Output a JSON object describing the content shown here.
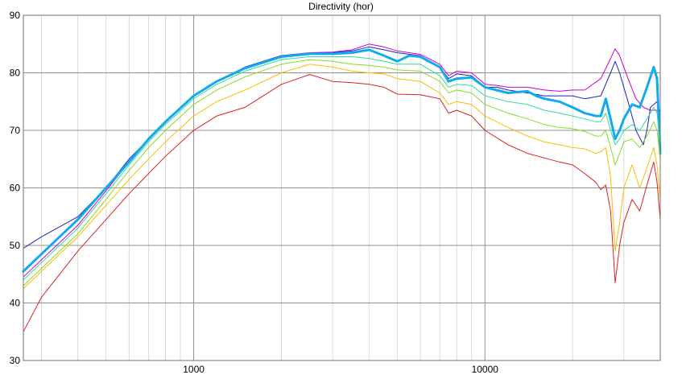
{
  "chart_data": {
    "type": "line",
    "title": "Directivity (hor)",
    "xlabel": "",
    "ylabel": "",
    "x_scale": "log",
    "xlim": [
      260,
      40000
    ],
    "ylim": [
      30,
      90
    ],
    "yticks": [
      30,
      40,
      50,
      60,
      70,
      80,
      90
    ],
    "xticks_labeled": [
      1000,
      10000
    ],
    "xticks_labels": [
      "1000",
      "10000"
    ],
    "grid": true,
    "legend": "none",
    "series": [
      {
        "color": "#cc00cc",
        "width": 1,
        "points": [
          [
            260,
            44.5
          ],
          [
            300,
            47.5
          ],
          [
            400,
            53.5
          ],
          [
            500,
            59.5
          ],
          [
            600,
            64.5
          ],
          [
            700,
            68.5
          ],
          [
            800,
            71.5
          ],
          [
            1000,
            76
          ],
          [
            1200,
            78.5
          ],
          [
            1500,
            81
          ],
          [
            2000,
            83
          ],
          [
            2500,
            83.5
          ],
          [
            3000,
            83.6
          ],
          [
            3500,
            84
          ],
          [
            4000,
            85
          ],
          [
            4500,
            84.5
          ],
          [
            5000,
            83.8
          ],
          [
            6000,
            83.2
          ],
          [
            7000,
            81.5
          ],
          [
            7500,
            79.5
          ],
          [
            8000,
            80.3
          ],
          [
            9000,
            80
          ],
          [
            10000,
            78
          ],
          [
            11000,
            77.8
          ],
          [
            12000,
            77.5
          ],
          [
            14000,
            77.5
          ],
          [
            16000,
            77
          ],
          [
            18000,
            76.8
          ],
          [
            20000,
            77
          ],
          [
            22000,
            77
          ],
          [
            25000,
            79
          ],
          [
            27000,
            82.5
          ],
          [
            28000,
            84.2
          ],
          [
            29000,
            83
          ],
          [
            31000,
            79
          ],
          [
            33000,
            75.5
          ],
          [
            35000,
            74
          ],
          [
            37000,
            73.5
          ],
          [
            39000,
            73.5
          ],
          [
            40000,
            72.5
          ]
        ]
      },
      {
        "color": "#2222bb",
        "width": 1,
        "points": [
          [
            260,
            49.5
          ],
          [
            300,
            51.5
          ],
          [
            400,
            55
          ],
          [
            500,
            60
          ],
          [
            600,
            65
          ],
          [
            700,
            68.5
          ],
          [
            800,
            71.5
          ],
          [
            1000,
            76
          ],
          [
            1200,
            78.5
          ],
          [
            1500,
            81
          ],
          [
            2000,
            83
          ],
          [
            2500,
            83.4
          ],
          [
            3000,
            83.5
          ],
          [
            3500,
            83.8
          ],
          [
            4000,
            84.5
          ],
          [
            4500,
            84
          ],
          [
            5000,
            83.5
          ],
          [
            6000,
            83
          ],
          [
            7000,
            81
          ],
          [
            7500,
            79
          ],
          [
            8000,
            79.8
          ],
          [
            9000,
            79.5
          ],
          [
            10000,
            77.5
          ],
          [
            11000,
            77.5
          ],
          [
            12000,
            77
          ],
          [
            14000,
            76.5
          ],
          [
            16000,
            76
          ],
          [
            18000,
            76
          ],
          [
            20000,
            76
          ],
          [
            22000,
            75.5
          ],
          [
            25000,
            76
          ],
          [
            27000,
            80
          ],
          [
            28000,
            82
          ],
          [
            29000,
            80
          ],
          [
            31000,
            75
          ],
          [
            33000,
            70
          ],
          [
            35000,
            67.5
          ],
          [
            36000,
            70
          ],
          [
            37000,
            74
          ],
          [
            39000,
            75
          ],
          [
            40000,
            73
          ]
        ]
      },
      {
        "color": "#11aaee",
        "width": 3,
        "points": [
          [
            260,
            45.5
          ],
          [
            300,
            48.5
          ],
          [
            400,
            54.5
          ],
          [
            500,
            60
          ],
          [
            600,
            64.5
          ],
          [
            700,
            68.5
          ],
          [
            800,
            71.5
          ],
          [
            1000,
            76
          ],
          [
            1200,
            78.5
          ],
          [
            1500,
            80.8
          ],
          [
            2000,
            82.8
          ],
          [
            2500,
            83.3
          ],
          [
            3000,
            83.3
          ],
          [
            3500,
            83.5
          ],
          [
            4000,
            84
          ],
          [
            4500,
            83
          ],
          [
            5000,
            82
          ],
          [
            5500,
            83
          ],
          [
            6000,
            82.8
          ],
          [
            7000,
            81
          ],
          [
            7500,
            78.5
          ],
          [
            8000,
            79
          ],
          [
            9000,
            79.2
          ],
          [
            10000,
            77.5
          ],
          [
            12000,
            76.5
          ],
          [
            14000,
            76.8
          ],
          [
            15000,
            76
          ],
          [
            16000,
            75.5
          ],
          [
            18000,
            75
          ],
          [
            20000,
            74
          ],
          [
            22000,
            73
          ],
          [
            24000,
            72.5
          ],
          [
            25000,
            72.5
          ],
          [
            26000,
            75.5
          ],
          [
            27000,
            72
          ],
          [
            28000,
            68.5
          ],
          [
            29000,
            70
          ],
          [
            30000,
            72
          ],
          [
            32000,
            74.5
          ],
          [
            34000,
            74
          ],
          [
            36000,
            77.5
          ],
          [
            38000,
            81
          ],
          [
            39000,
            79
          ],
          [
            40000,
            66
          ]
        ]
      },
      {
        "color": "#33dd99",
        "width": 1,
        "points": [
          [
            260,
            44
          ],
          [
            300,
            47
          ],
          [
            400,
            53
          ],
          [
            500,
            59
          ],
          [
            600,
            64
          ],
          [
            700,
            68
          ],
          [
            800,
            71
          ],
          [
            1000,
            75.5
          ],
          [
            1200,
            78
          ],
          [
            1500,
            80.3
          ],
          [
            2000,
            82.3
          ],
          [
            2500,
            82.8
          ],
          [
            3000,
            82.8
          ],
          [
            3500,
            82.8
          ],
          [
            4000,
            82.5
          ],
          [
            4500,
            82
          ],
          [
            5000,
            81.5
          ],
          [
            6000,
            81.5
          ],
          [
            7000,
            79.5
          ],
          [
            7500,
            77.5
          ],
          [
            8000,
            78
          ],
          [
            9000,
            77.8
          ],
          [
            10000,
            76
          ],
          [
            12000,
            75
          ],
          [
            14000,
            74.5
          ],
          [
            16000,
            73.5
          ],
          [
            18000,
            73
          ],
          [
            20000,
            72.5
          ],
          [
            22000,
            72
          ],
          [
            24000,
            71.5
          ],
          [
            25000,
            71.5
          ],
          [
            26000,
            73
          ],
          [
            27000,
            70
          ],
          [
            28000,
            67.5
          ],
          [
            29000,
            68.5
          ],
          [
            30000,
            70
          ],
          [
            32000,
            71
          ],
          [
            34000,
            70
          ],
          [
            36000,
            72
          ],
          [
            38000,
            74
          ],
          [
            39000,
            73
          ],
          [
            40000,
            67
          ]
        ]
      },
      {
        "color": "#88dd22",
        "width": 1,
        "points": [
          [
            260,
            43
          ],
          [
            300,
            46
          ],
          [
            400,
            52
          ],
          [
            500,
            58
          ],
          [
            600,
            63
          ],
          [
            700,
            67
          ],
          [
            800,
            70
          ],
          [
            1000,
            74.5
          ],
          [
            1200,
            77
          ],
          [
            1500,
            79.3
          ],
          [
            2000,
            81.5
          ],
          [
            2500,
            82.3
          ],
          [
            3000,
            82
          ],
          [
            3500,
            81.5
          ],
          [
            4000,
            81.3
          ],
          [
            4500,
            81
          ],
          [
            5000,
            80.5
          ],
          [
            6000,
            80.3
          ],
          [
            7000,
            78.5
          ],
          [
            7500,
            76.5
          ],
          [
            8000,
            77
          ],
          [
            9000,
            76.5
          ],
          [
            10000,
            74.5
          ],
          [
            12000,
            73
          ],
          [
            14000,
            72
          ],
          [
            16000,
            71
          ],
          [
            18000,
            70.5
          ],
          [
            20000,
            70.3
          ],
          [
            22000,
            69.8
          ],
          [
            24000,
            69
          ],
          [
            25000,
            69
          ],
          [
            26000,
            70
          ],
          [
            27000,
            67
          ],
          [
            28000,
            64
          ],
          [
            29000,
            66
          ],
          [
            30000,
            68
          ],
          [
            32000,
            68.5
          ],
          [
            34000,
            67
          ],
          [
            36000,
            69
          ],
          [
            38000,
            71.5
          ],
          [
            39000,
            70
          ],
          [
            40000,
            65
          ]
        ]
      },
      {
        "color": "#ffbb00",
        "width": 1,
        "points": [
          [
            260,
            42.5
          ],
          [
            300,
            45.5
          ],
          [
            400,
            51.5
          ],
          [
            500,
            57
          ],
          [
            600,
            61.5
          ],
          [
            700,
            65
          ],
          [
            800,
            68
          ],
          [
            1000,
            72.5
          ],
          [
            1200,
            75
          ],
          [
            1500,
            77
          ],
          [
            2000,
            80
          ],
          [
            2500,
            81.5
          ],
          [
            3000,
            81
          ],
          [
            3500,
            80.3
          ],
          [
            4000,
            80
          ],
          [
            4500,
            79.8
          ],
          [
            5000,
            79
          ],
          [
            6000,
            78.5
          ],
          [
            7000,
            76.5
          ],
          [
            7500,
            74.5
          ],
          [
            8000,
            75
          ],
          [
            9000,
            74.5
          ],
          [
            10000,
            72.5
          ],
          [
            12000,
            70.5
          ],
          [
            14000,
            69
          ],
          [
            16000,
            68
          ],
          [
            18000,
            67.5
          ],
          [
            20000,
            67
          ],
          [
            22000,
            66.8
          ],
          [
            24000,
            66
          ],
          [
            25000,
            66.3
          ],
          [
            26000,
            67
          ],
          [
            27000,
            62
          ],
          [
            28000,
            49
          ],
          [
            29000,
            54
          ],
          [
            30000,
            60
          ],
          [
            32000,
            64
          ],
          [
            34000,
            60
          ],
          [
            36000,
            63.5
          ],
          [
            38000,
            67
          ],
          [
            39000,
            64
          ],
          [
            40000,
            58
          ]
        ]
      },
      {
        "color": "#dd2222",
        "width": 1,
        "points": [
          [
            260,
            35
          ],
          [
            300,
            41
          ],
          [
            400,
            49
          ],
          [
            500,
            54.5
          ],
          [
            600,
            59
          ],
          [
            700,
            62.5
          ],
          [
            800,
            65.5
          ],
          [
            1000,
            70
          ],
          [
            1200,
            72.5
          ],
          [
            1500,
            74
          ],
          [
            2000,
            78
          ],
          [
            2500,
            79.7
          ],
          [
            3000,
            78.5
          ],
          [
            3500,
            78.3
          ],
          [
            4000,
            78
          ],
          [
            4500,
            77.5
          ],
          [
            5000,
            76.3
          ],
          [
            6000,
            76.2
          ],
          [
            7000,
            75.5
          ],
          [
            7500,
            73
          ],
          [
            8000,
            73.5
          ],
          [
            9000,
            72.5
          ],
          [
            10000,
            70
          ],
          [
            12000,
            67.5
          ],
          [
            14000,
            66
          ],
          [
            16000,
            65.2
          ],
          [
            18000,
            64.5
          ],
          [
            20000,
            64
          ],
          [
            22000,
            62.5
          ],
          [
            24000,
            61
          ],
          [
            25000,
            59.7
          ],
          [
            26000,
            60.5
          ],
          [
            27000,
            56
          ],
          [
            28000,
            43.5
          ],
          [
            29000,
            50
          ],
          [
            30000,
            54
          ],
          [
            32000,
            58
          ],
          [
            34000,
            56
          ],
          [
            36000,
            60.5
          ],
          [
            38000,
            64.5
          ],
          [
            39000,
            61
          ],
          [
            40000,
            54.5
          ]
        ]
      }
    ]
  }
}
